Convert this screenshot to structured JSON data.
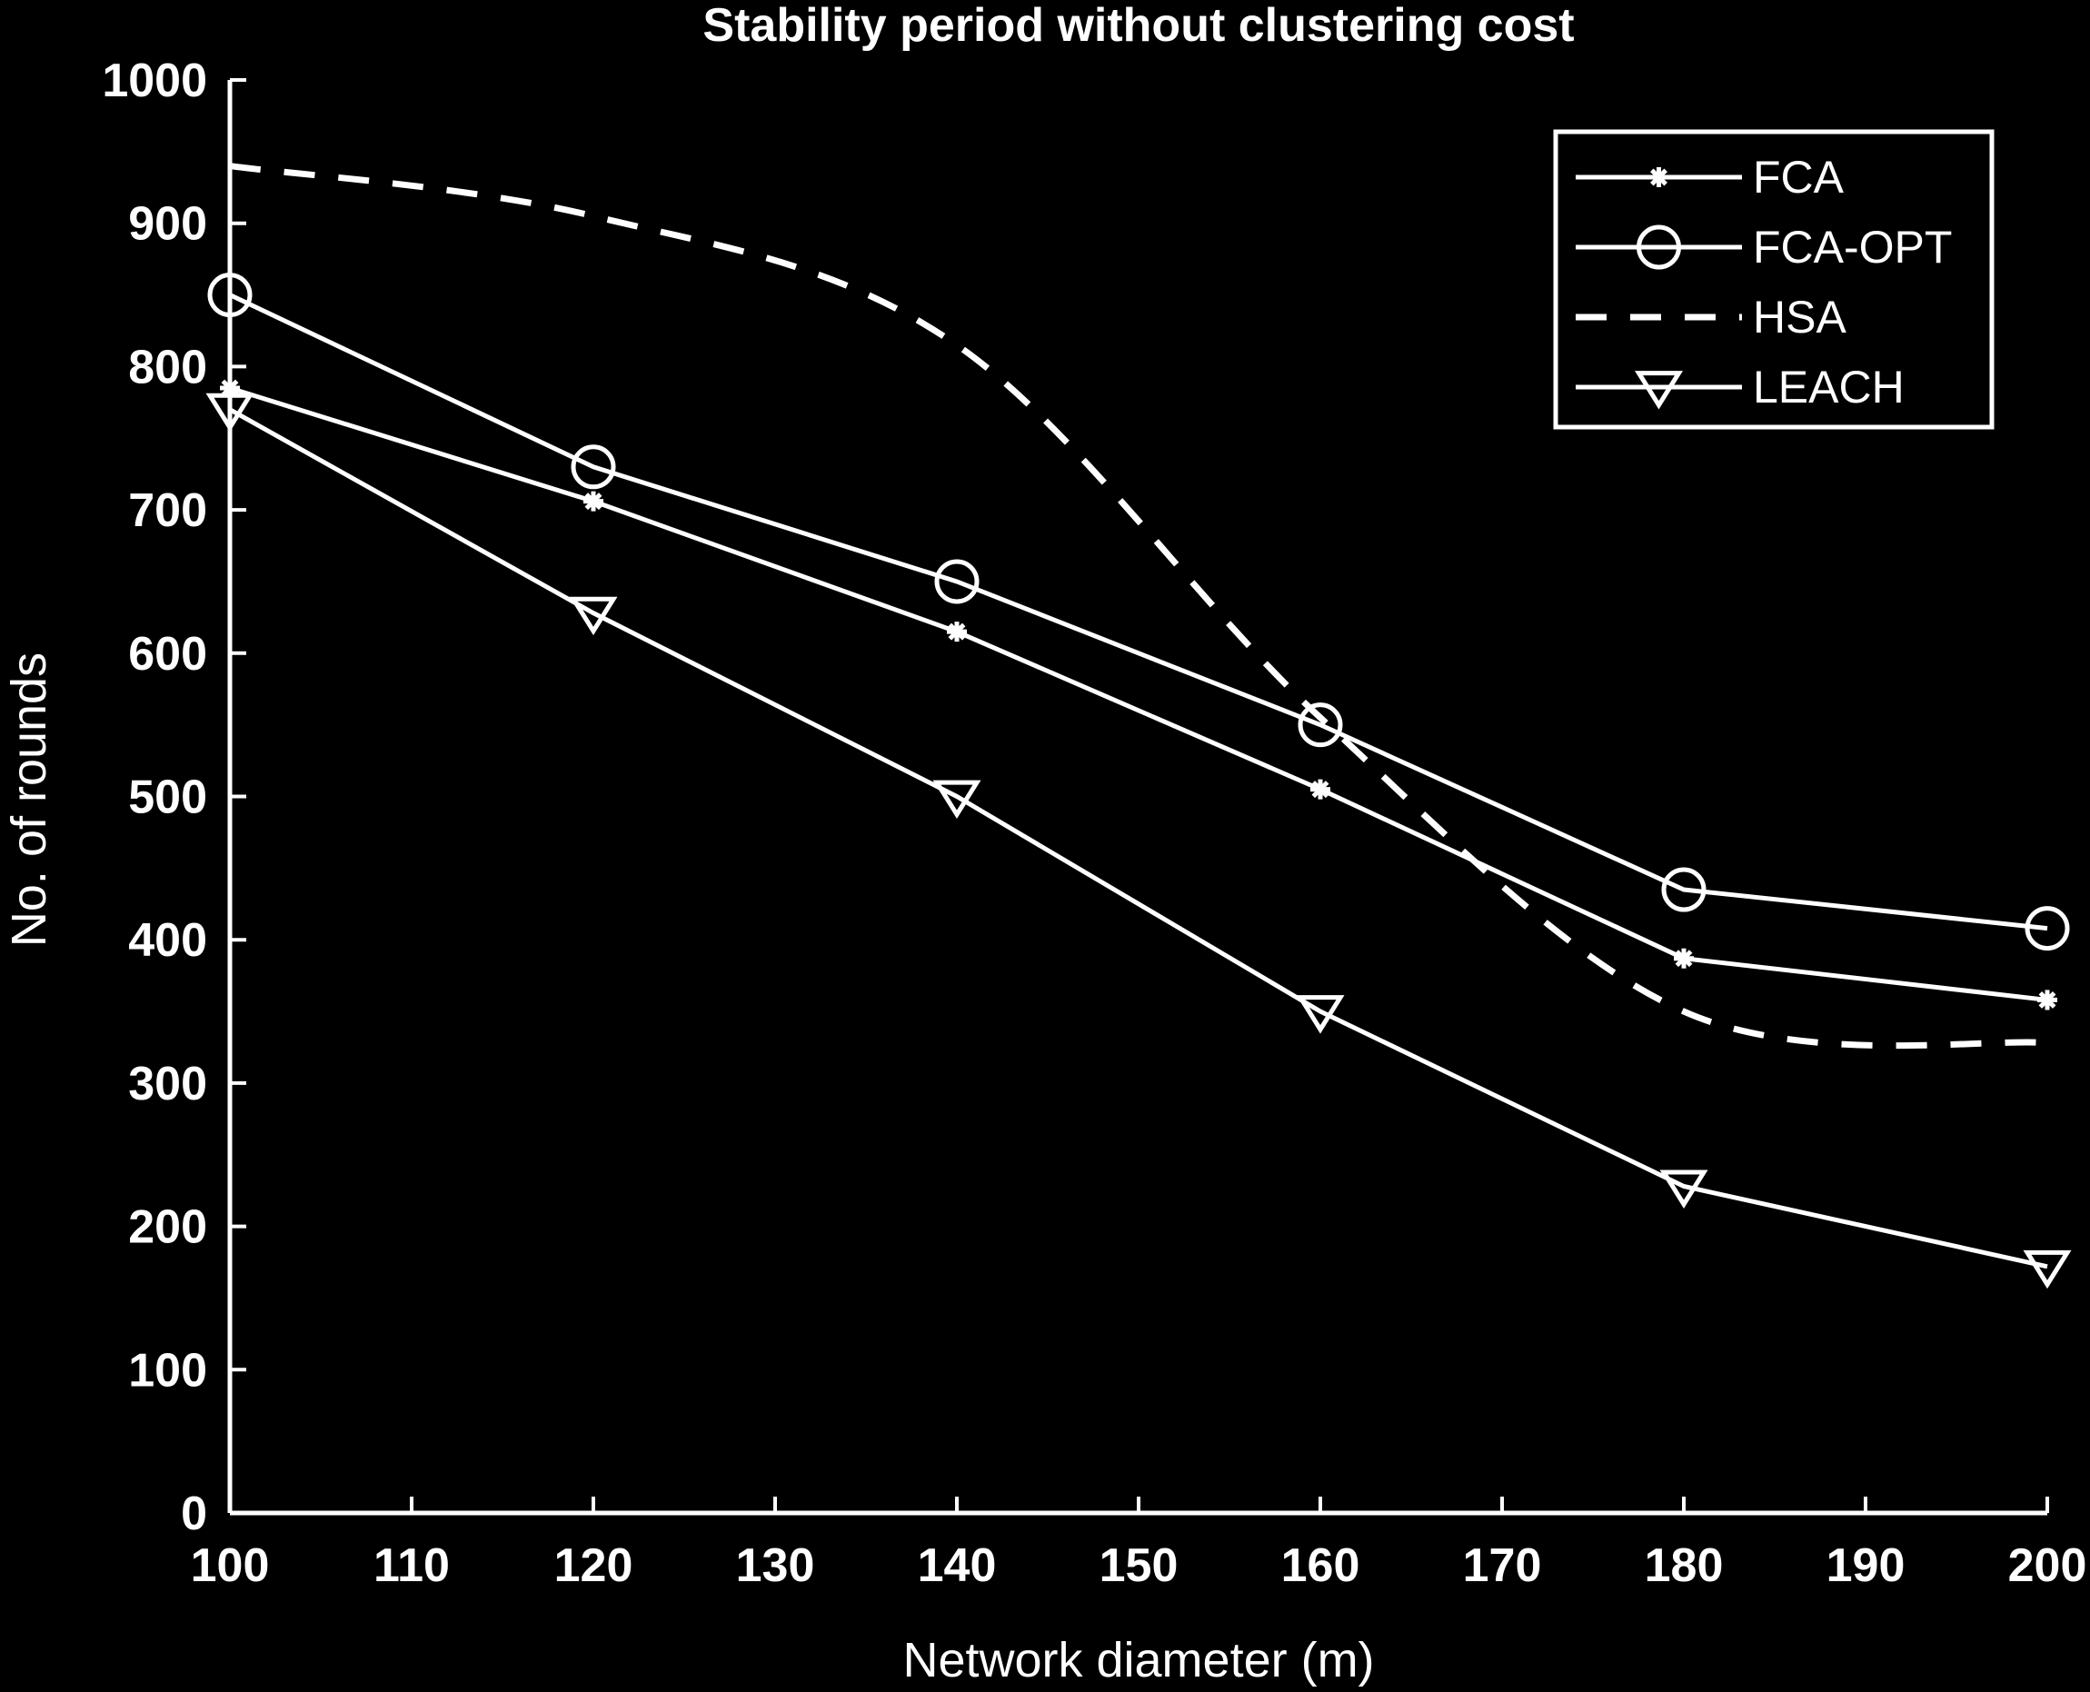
{
  "chart_data": {
    "type": "line",
    "title": "Stability period without clustering cost",
    "xlabel": "Network diameter (m)",
    "ylabel": "No. of rounds",
    "xlim": [
      100,
      200
    ],
    "ylim": [
      0,
      1000
    ],
    "xticks": [
      100,
      110,
      120,
      130,
      140,
      150,
      160,
      170,
      180,
      190,
      200
    ],
    "yticks": [
      0,
      100,
      200,
      300,
      400,
      500,
      600,
      700,
      800,
      900,
      1000
    ],
    "legend_position": "top-right",
    "colors": {
      "background": "#000000",
      "foreground": "#ffffff"
    },
    "series": [
      {
        "name": "FCA",
        "marker": "asterisk",
        "style": "solid",
        "x": [
          100,
          120,
          140,
          160,
          180,
          200
        ],
        "values": [
          785,
          706,
          615,
          505,
          387,
          358
        ]
      },
      {
        "name": "FCA-OPT",
        "marker": "circle",
        "style": "solid",
        "x": [
          100,
          120,
          140,
          160,
          180,
          200
        ],
        "values": [
          850,
          730,
          650,
          550,
          435,
          408
        ]
      },
      {
        "name": "HSA",
        "marker": "none",
        "style": "dashed",
        "x": [
          100,
          120,
          140,
          160,
          180,
          200
        ],
        "values": [
          940,
          905,
          815,
          555,
          350,
          328
        ]
      },
      {
        "name": "LEACH",
        "marker": "triangle-down",
        "style": "solid",
        "x": [
          100,
          120,
          140,
          160,
          180,
          200
        ],
        "values": [
          770,
          628,
          500,
          350,
          228,
          172
        ]
      }
    ]
  }
}
